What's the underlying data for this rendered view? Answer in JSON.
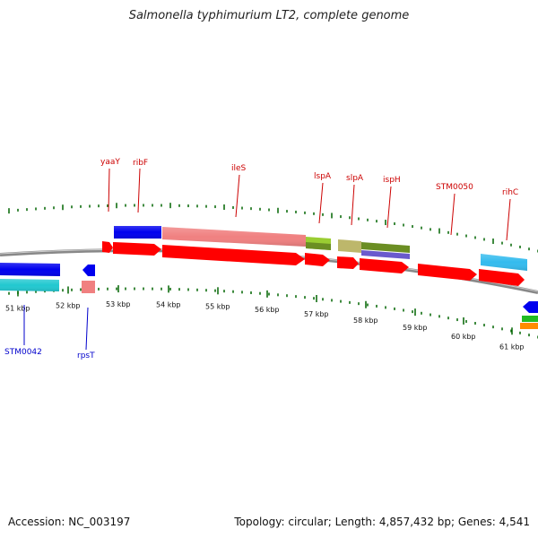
{
  "title": "Salmonella typhimurium LT2, complete genome",
  "accession": "Accession: NC_003197",
  "topology": "Topology: circular; Length: 4,857,432 bp; Genes: 4,541",
  "ticks": [
    "51 kbp",
    "52 kbp",
    "53 kbp",
    "54 kbp",
    "55 kbp",
    "56 kbp",
    "57 kbp",
    "58 kbp",
    "59 kbp",
    "60 kbp",
    "61 kbp"
  ],
  "top_labels": [
    "yaaY",
    "ribF",
    "ileS",
    "lspA",
    "slpA",
    "ispH",
    "STM0050",
    "rihC"
  ],
  "bottom_labels": [
    "STM0042",
    "rpsT"
  ],
  "colors": {
    "red": "#ff0000",
    "blue": "#0000ee",
    "pink": "#f08080",
    "cyan": "#22c8d0",
    "skyblue": "#33bbee",
    "olive": "#6b8e23",
    "khaki": "#bdb76b",
    "lime": "#9acd32",
    "slateblue": "#6a5acd",
    "green": "#22bb22",
    "orange": "#ff8c00",
    "tick_green": "#006400",
    "backbone": "#888888"
  }
}
